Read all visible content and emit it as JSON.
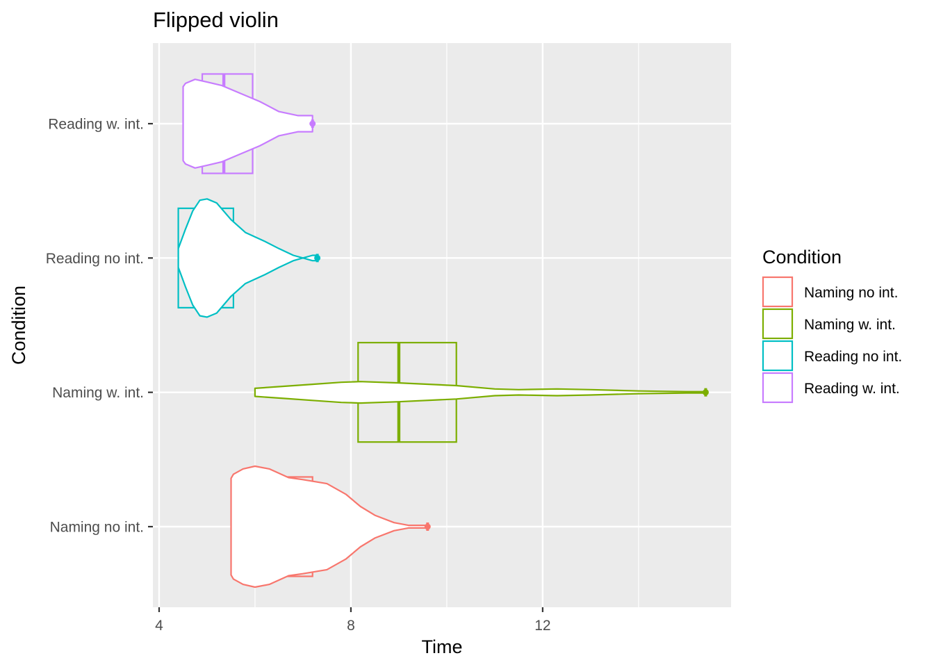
{
  "chart_data": {
    "type": "violin",
    "title": "Flipped violin",
    "xlabel": "Time",
    "ylabel": "Condition",
    "xlim": [
      3.87,
      15.93
    ],
    "x_ticks": [
      4,
      8,
      12
    ],
    "grid": true,
    "legend": {
      "title": "Condition",
      "placement": "right",
      "entries": [
        "Naming no int.",
        "Naming w. int.",
        "Reading no int.",
        "Reading w. int."
      ]
    },
    "categories": [
      "Naming no int.",
      "Naming w. int.",
      "Reading no int.",
      "Reading w. int."
    ],
    "series": [
      {
        "name": "Naming no int.",
        "color": "#F8766D",
        "box": {
          "q1": 6.0,
          "median": 6.3,
          "q3": 7.2
        },
        "max": 9.6,
        "density": [
          [
            5.5,
            0.72
          ],
          [
            5.55,
            0.78
          ],
          [
            5.75,
            0.86
          ],
          [
            6.0,
            0.9
          ],
          [
            6.3,
            0.86
          ],
          [
            6.7,
            0.73
          ],
          [
            7.0,
            0.7
          ],
          [
            7.5,
            0.64
          ],
          [
            7.9,
            0.48
          ],
          [
            8.2,
            0.3
          ],
          [
            8.5,
            0.17
          ],
          [
            8.9,
            0.06
          ],
          [
            9.2,
            0.02
          ],
          [
            9.6,
            0.02
          ]
        ]
      },
      {
        "name": "Naming w. int.",
        "color": "#7CAE00",
        "box": {
          "q1": 8.15,
          "median": 9.0,
          "q3": 10.2
        },
        "max": 15.4,
        "density": [
          [
            6.0,
            0.06
          ],
          [
            6.6,
            0.09
          ],
          [
            7.2,
            0.12
          ],
          [
            7.8,
            0.15
          ],
          [
            8.2,
            0.16
          ],
          [
            9.0,
            0.14
          ],
          [
            10.2,
            0.1
          ],
          [
            11.0,
            0.05
          ],
          [
            11.5,
            0.04
          ],
          [
            12.3,
            0.05
          ],
          [
            13.0,
            0.04
          ],
          [
            14.0,
            0.02
          ],
          [
            15.0,
            0.01
          ],
          [
            15.4,
            0.01
          ]
        ]
      },
      {
        "name": "Reading no int.",
        "color": "#00BFC4",
        "box": {
          "q1": null,
          "median": null,
          "q3": 5.55
        },
        "max": 7.3,
        "density": [
          [
            4.4,
            0.14
          ],
          [
            4.55,
            0.43
          ],
          [
            4.7,
            0.7
          ],
          [
            4.85,
            0.86
          ],
          [
            5.0,
            0.88
          ],
          [
            5.2,
            0.82
          ],
          [
            5.5,
            0.57
          ],
          [
            5.8,
            0.38
          ],
          [
            6.2,
            0.25
          ],
          [
            6.5,
            0.14
          ],
          [
            6.8,
            0.04
          ],
          [
            7.0,
            0.0
          ],
          [
            7.2,
            0.04
          ],
          [
            7.3,
            0.04
          ]
        ]
      },
      {
        "name": "Reading w. int.",
        "color": "#C77CFF",
        "box": {
          "q1": 4.9,
          "median": 5.35,
          "q3": 5.95
        },
        "max": 7.2,
        "density": [
          [
            4.5,
            0.55
          ],
          [
            4.55,
            0.6
          ],
          [
            4.75,
            0.66
          ],
          [
            5.0,
            0.62
          ],
          [
            5.3,
            0.57
          ],
          [
            5.7,
            0.45
          ],
          [
            6.1,
            0.33
          ],
          [
            6.5,
            0.18
          ],
          [
            6.9,
            0.12
          ],
          [
            7.2,
            0.12
          ]
        ]
      }
    ]
  }
}
